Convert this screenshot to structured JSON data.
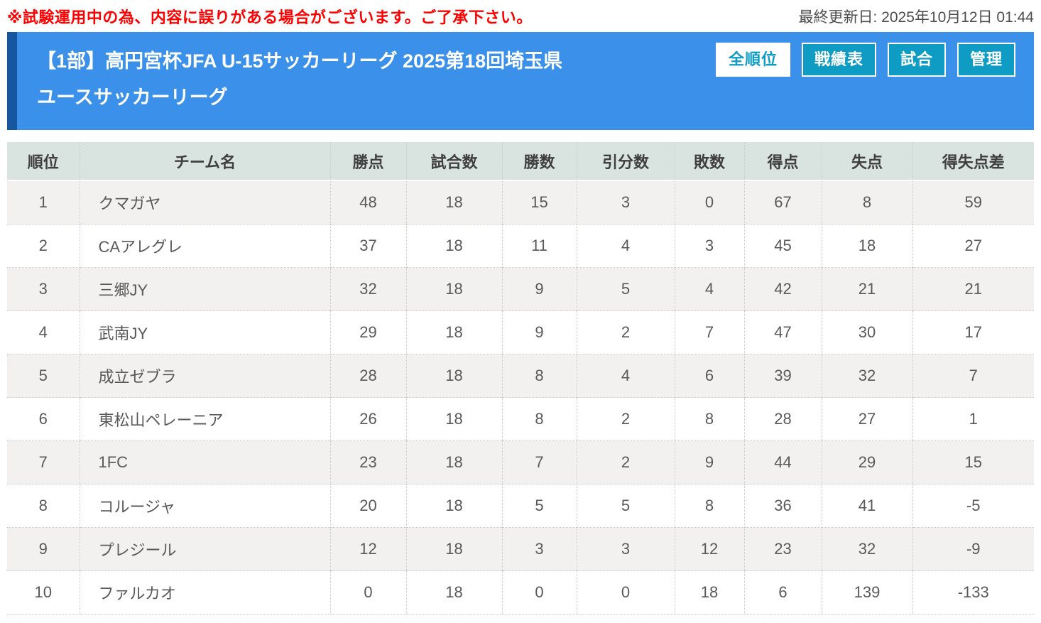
{
  "topbar": {
    "notice": "※試験運用中の為、内容に誤りがある場合がございます。ご了承下さい。",
    "last_updated": "最終更新日: 2025年10月12日 01:44"
  },
  "header": {
    "title_lines": [
      "【1部】高円宮杯JFA U-15サッカーリーグ 2025第18回埼玉県",
      "ユースサッカーリーグ"
    ],
    "tabs": [
      {
        "label": "全順位",
        "active": true
      },
      {
        "label": "戦績表",
        "active": false
      },
      {
        "label": "試合",
        "active": false
      },
      {
        "label": "管理",
        "active": false
      }
    ]
  },
  "colors": {
    "notice_red": "#ff0000",
    "header_blue": "#3b90e9",
    "header_left_strip": "#15569e",
    "tab_teal": "#0f9cc4",
    "table_header_bg": "#d9e3e0",
    "row_alt_bg": "#f2f1ef",
    "cell_text": "#595959"
  },
  "table": {
    "columns": [
      "順位",
      "チーム名",
      "勝点",
      "試合数",
      "勝数",
      "引分数",
      "敗数",
      "得点",
      "失点",
      "得失点差"
    ],
    "rows": [
      [
        "1",
        "クマガヤ",
        "48",
        "18",
        "15",
        "3",
        "0",
        "67",
        "8",
        "59"
      ],
      [
        "2",
        "CAアレグレ",
        "37",
        "18",
        "11",
        "4",
        "3",
        "45",
        "18",
        "27"
      ],
      [
        "3",
        "三郷JY",
        "32",
        "18",
        "9",
        "5",
        "4",
        "42",
        "21",
        "21"
      ],
      [
        "4",
        "武南JY",
        "29",
        "18",
        "9",
        "2",
        "7",
        "47",
        "30",
        "17"
      ],
      [
        "5",
        "成立ゼブラ",
        "28",
        "18",
        "8",
        "4",
        "6",
        "39",
        "32",
        "7"
      ],
      [
        "6",
        "東松山ペレーニア",
        "26",
        "18",
        "8",
        "2",
        "8",
        "28",
        "27",
        "1"
      ],
      [
        "7",
        "1FC",
        "23",
        "18",
        "7",
        "2",
        "9",
        "44",
        "29",
        "15"
      ],
      [
        "8",
        "コルージャ",
        "20",
        "18",
        "5",
        "5",
        "8",
        "36",
        "41",
        "-5"
      ],
      [
        "9",
        "プレジール",
        "12",
        "18",
        "3",
        "3",
        "12",
        "23",
        "32",
        "-9"
      ],
      [
        "10",
        "ファルカオ",
        "0",
        "18",
        "0",
        "0",
        "18",
        "6",
        "139",
        "-133"
      ]
    ]
  }
}
